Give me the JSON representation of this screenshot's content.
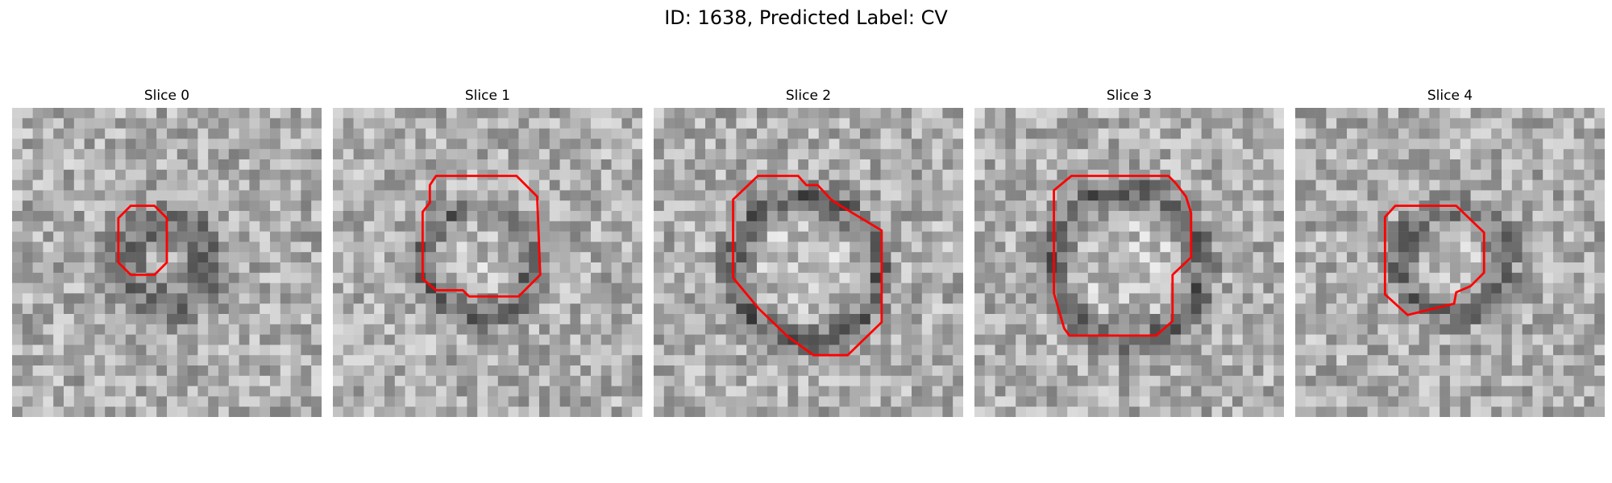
{
  "figure": {
    "title": "ID: 1638, Predicted Label: CV"
  },
  "panels": [
    {
      "title": "Slice 0",
      "contour_color": "#ff0000"
    },
    {
      "title": "Slice 1",
      "contour_color": "#ff0000"
    },
    {
      "title": "Slice 2",
      "contour_color": "#ff0000"
    },
    {
      "title": "Slice 3",
      "contour_color": "#ff0000"
    },
    {
      "title": "Slice 4",
      "contour_color": "#ff0000"
    }
  ]
}
